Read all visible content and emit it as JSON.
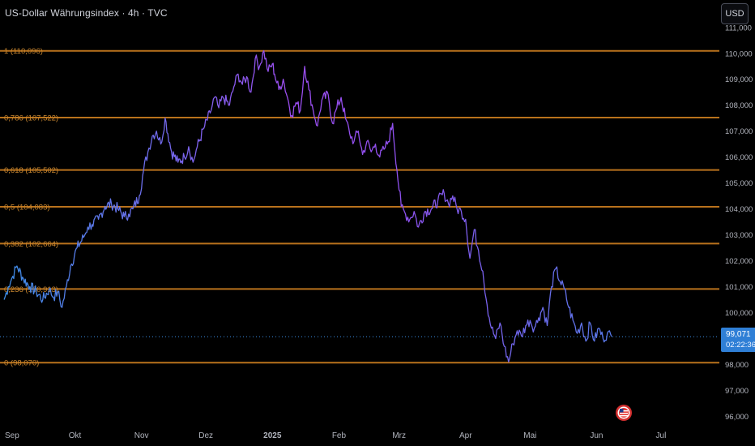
{
  "header": {
    "title": "US-Dollar Währungsindex · 4h · TVC",
    "currency_button": "USD"
  },
  "last_price": {
    "value": "99,071",
    "countdown": "02:22:36"
  },
  "colors": {
    "background": "#000000",
    "fib_line": "#b9721c",
    "fib_label": "#c8862f",
    "line_start": "#3c8de6",
    "line_peak": "#9c4ef0",
    "price_tag": "#2f7fd6",
    "axis_text": "#b2b5be"
  },
  "chart_data": {
    "type": "line",
    "title": "US-Dollar Währungsindex · 4h · TVC",
    "ylim": [
      95.7,
      111.4
    ],
    "y_ticks": [
      "96,000",
      "97,000",
      "98,000",
      "99,000",
      "100,000",
      "101,000",
      "102,000",
      "103,000",
      "104,000",
      "105,000",
      "106,000",
      "107,000",
      "108,000",
      "109,000",
      "110,000",
      "111,000"
    ],
    "y_tick_values": [
      96,
      97,
      98,
      99,
      100,
      101,
      102,
      103,
      104,
      105,
      106,
      107,
      108,
      109,
      110,
      111
    ],
    "x_labels": [
      "Sep",
      "Okt",
      "Nov",
      "Dez",
      "2025",
      "Feb",
      "Mrz",
      "Apr",
      "Mai",
      "Jun",
      "Jul"
    ],
    "x_label_days": [
      0,
      30,
      61,
      91,
      122,
      153,
      181,
      212,
      242,
      273,
      303
    ],
    "x_axis_start": "2024-09-01",
    "fib_levels": [
      {
        "label": "1 (110,096)",
        "value": 110.096
      },
      {
        "label": "0,786 (107,522)",
        "value": 107.522
      },
      {
        "label": "0,618 (105,502)",
        "value": 105.502
      },
      {
        "label": "0,5 (104,083)",
        "value": 104.083
      },
      {
        "label": "0,382 (102,664)",
        "value": 102.664
      },
      {
        "label": "0,236 (100,913)",
        "value": 100.913
      },
      {
        "label": "0 (98,070)",
        "value": 98.07
      }
    ],
    "last_value": 99.071,
    "series": [
      {
        "x_days": [
          -3,
          -1,
          1,
          3,
          6,
          9,
          12,
          15,
          18,
          20,
          22,
          24,
          26,
          28,
          31,
          34,
          36,
          38,
          41,
          44,
          47,
          50,
          53,
          55,
          57,
          60,
          62,
          64,
          66,
          68,
          70,
          72,
          75,
          78,
          81,
          83,
          85,
          87,
          90,
          93,
          95,
          97,
          99,
          102,
          104,
          106,
          108,
          110,
          112,
          114,
          116,
          118,
          120,
          122,
          123,
          125,
          127,
          129,
          131,
          133,
          135,
          137,
          139,
          141,
          143,
          145,
          148,
          150,
          152,
          154,
          156,
          158,
          160,
          162,
          164,
          166,
          168,
          170,
          172,
          174,
          176,
          178,
          180,
          182,
          184,
          186,
          188,
          190,
          193,
          196,
          199,
          202,
          204,
          206,
          208,
          210,
          212,
          214,
          216,
          218,
          220,
          222,
          224,
          226,
          228,
          230,
          232,
          234,
          236,
          238,
          240,
          242,
          244,
          246,
          248,
          250,
          252,
          254,
          256,
          258,
          260,
          262,
          264,
          266,
          268,
          270,
          272,
          274,
          276,
          278,
          280
        ],
        "y": [
          100.5,
          101.0,
          101.4,
          101.8,
          101.3,
          101.0,
          100.8,
          100.5,
          100.9,
          100.6,
          100.8,
          100.2,
          101.0,
          101.8,
          102.5,
          102.9,
          103.3,
          103.4,
          103.6,
          104.1,
          104.2,
          104.0,
          103.7,
          103.8,
          104.0,
          104.5,
          105.5,
          106.2,
          106.8,
          107.0,
          106.5,
          107.5,
          106.2,
          105.8,
          106.0,
          106.4,
          105.8,
          106.4,
          107.1,
          107.7,
          108.3,
          107.9,
          108.3,
          108.0,
          108.7,
          109.2,
          108.8,
          109.1,
          108.5,
          109.8,
          109.5,
          110.1,
          109.3,
          109.6,
          109.2,
          108.6,
          109.0,
          108.3,
          107.6,
          108.1,
          107.8,
          109.5,
          108.6,
          107.8,
          107.2,
          108.2,
          108.4,
          107.3,
          107.9,
          108.3,
          107.5,
          106.9,
          106.6,
          107.0,
          106.1,
          106.6,
          106.2,
          106.5,
          106.0,
          106.3,
          106.6,
          107.3,
          105.5,
          104.1,
          103.8,
          103.6,
          103.9,
          103.3,
          103.9,
          104.0,
          104.3,
          104.6,
          104.2,
          104.5,
          104.0,
          103.9,
          103.6,
          102.1,
          103.2,
          102.4,
          101.6,
          100.3,
          99.4,
          99.0,
          99.6,
          98.7,
          98.1,
          98.8,
          99.3,
          99.1,
          99.5,
          99.7,
          99.4,
          99.8,
          100.2,
          99.5,
          101.0,
          101.7,
          101.2,
          100.9,
          100.2,
          99.7,
          99.2,
          99.6,
          98.9,
          99.6,
          98.9,
          99.4,
          99.0,
          99.2,
          99.07
        ]
      }
    ]
  }
}
